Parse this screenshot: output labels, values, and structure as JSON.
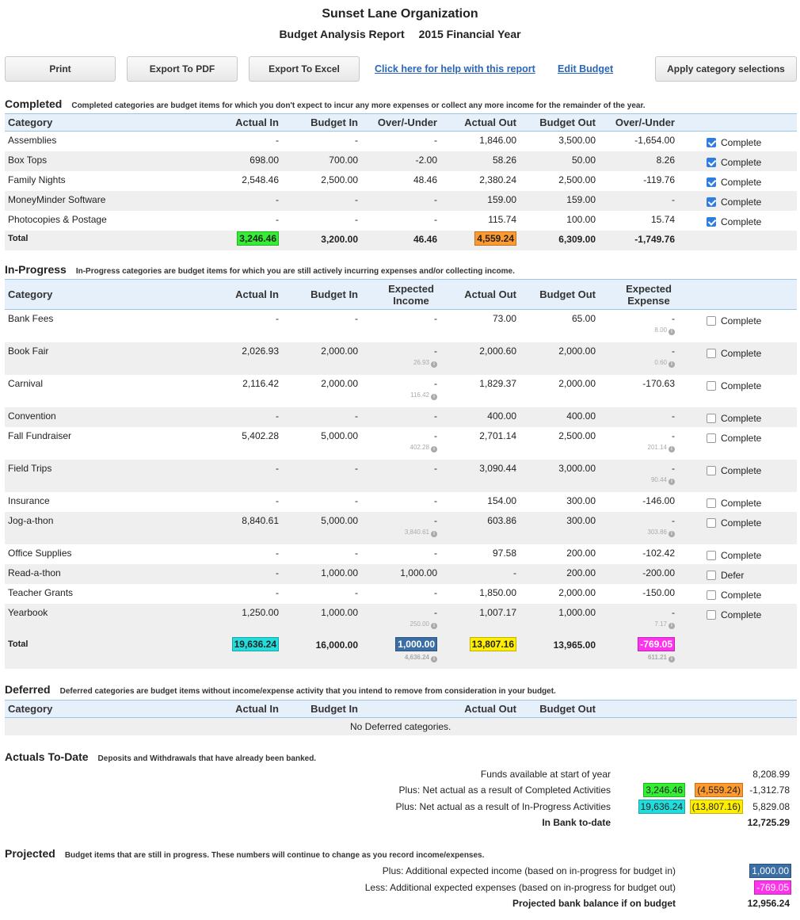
{
  "header": {
    "org": "Sunset Lane Organization",
    "report": "Budget Analysis Report",
    "year": "2015 Financial Year"
  },
  "toolbar": {
    "print": "Print",
    "export_pdf": "Export To PDF",
    "export_excel": "Export To Excel",
    "help_link": "Click here for help with this report",
    "edit_budget": "Edit Budget",
    "apply": "Apply category selections"
  },
  "colors": {
    "green": "#33ee33",
    "orange": "#ff9a2e",
    "cyan": "#22dddd",
    "yellow": "#ffee00",
    "blue": "#3a6ea5",
    "magenta": "#ff33ee"
  },
  "completed": {
    "title": "Completed",
    "desc": "Completed categories are budget items for which you don't expect to incur any more expenses or collect any more income for the remainder of the year.",
    "columns": [
      "Category",
      "Actual In",
      "Budget In",
      "Over/-Under",
      "Actual Out",
      "Budget Out",
      "Over/-Under"
    ],
    "rows": [
      {
        "cat": "Assemblies",
        "ain": "-",
        "bin": "-",
        "ou1": "-",
        "aout": "1,846.00",
        "bout": "3,500.00",
        "ou2": "-1,654.00",
        "status": "Complete",
        "checked": true
      },
      {
        "cat": "Box Tops",
        "ain": "698.00",
        "bin": "700.00",
        "ou1": "-2.00",
        "aout": "58.26",
        "bout": "50.00",
        "ou2": "8.26",
        "status": "Complete",
        "checked": true
      },
      {
        "cat": "Family Nights",
        "ain": "2,548.46",
        "bin": "2,500.00",
        "ou1": "48.46",
        "aout": "2,380.24",
        "bout": "2,500.00",
        "ou2": "-119.76",
        "status": "Complete",
        "checked": true
      },
      {
        "cat": "MoneyMinder Software",
        "ain": "-",
        "bin": "-",
        "ou1": "-",
        "aout": "159.00",
        "bout": "159.00",
        "ou2": "-",
        "status": "Complete",
        "checked": true
      },
      {
        "cat": "Photocopies & Postage",
        "ain": "-",
        "bin": "-",
        "ou1": "-",
        "aout": "115.74",
        "bout": "100.00",
        "ou2": "15.74",
        "status": "Complete",
        "checked": true
      }
    ],
    "total": {
      "label": "Total",
      "ain": "3,246.46",
      "bin": "3,200.00",
      "ou1": "46.46",
      "aout": "4,559.24",
      "bout": "6,309.00",
      "ou2": "-1,749.76"
    }
  },
  "in_progress": {
    "title": "In-Progress",
    "desc": "In-Progress categories are budget items for which you are still actively incurring expenses and/or collecting income.",
    "columns": [
      "Category",
      "Actual In",
      "Budget In",
      "Expected Income",
      "Actual Out",
      "Budget Out",
      "Expected Expense"
    ],
    "rows": [
      {
        "cat": "Bank Fees",
        "ain": "-",
        "bin": "-",
        "ei": "-",
        "ei_sub": "",
        "aout": "73.00",
        "bout": "65.00",
        "ee": "-",
        "ee_sub": "8.00",
        "status": "Complete"
      },
      {
        "cat": "Book Fair",
        "ain": "2,026.93",
        "bin": "2,000.00",
        "ei": "-",
        "ei_sub": "26.93",
        "aout": "2,000.60",
        "bout": "2,000.00",
        "ee": "-",
        "ee_sub": "0.60",
        "status": "Complete"
      },
      {
        "cat": "Carnival",
        "ain": "2,116.42",
        "bin": "2,000.00",
        "ei": "-",
        "ei_sub": "116.42",
        "aout": "1,829.37",
        "bout": "2,000.00",
        "ee": "-170.63",
        "ee_sub": "",
        "status": "Complete"
      },
      {
        "cat": "Convention",
        "ain": "-",
        "bin": "-",
        "ei": "-",
        "ei_sub": "",
        "aout": "400.00",
        "bout": "400.00",
        "ee": "-",
        "ee_sub": "",
        "status": "Complete"
      },
      {
        "cat": "Fall Fundraiser",
        "ain": "5,402.28",
        "bin": "5,000.00",
        "ei": "-",
        "ei_sub": "402.28",
        "aout": "2,701.14",
        "bout": "2,500.00",
        "ee": "-",
        "ee_sub": "201.14",
        "status": "Complete"
      },
      {
        "cat": "Field Trips",
        "ain": "-",
        "bin": "-",
        "ei": "-",
        "ei_sub": "",
        "aout": "3,090.44",
        "bout": "3,000.00",
        "ee": "-",
        "ee_sub": "90.44",
        "status": "Complete"
      },
      {
        "cat": "Insurance",
        "ain": "-",
        "bin": "-",
        "ei": "-",
        "ei_sub": "",
        "aout": "154.00",
        "bout": "300.00",
        "ee": "-146.00",
        "ee_sub": "",
        "status": "Complete"
      },
      {
        "cat": "Jog-a-thon",
        "ain": "8,840.61",
        "bin": "5,000.00",
        "ei": "-",
        "ei_sub": "3,840.61",
        "aout": "603.86",
        "bout": "300.00",
        "ee": "-",
        "ee_sub": "303.86",
        "status": "Complete"
      },
      {
        "cat": "Office Supplies",
        "ain": "-",
        "bin": "-",
        "ei": "-",
        "ei_sub": "",
        "aout": "97.58",
        "bout": "200.00",
        "ee": "-102.42",
        "ee_sub": "",
        "status": "Complete"
      },
      {
        "cat": "Read-a-thon",
        "ain": "-",
        "bin": "1,000.00",
        "ei": "1,000.00",
        "ei_sub": "",
        "aout": "-",
        "bout": "200.00",
        "ee": "-200.00",
        "ee_sub": "",
        "status": "Defer"
      },
      {
        "cat": "Teacher Grants",
        "ain": "-",
        "bin": "-",
        "ei": "-",
        "ei_sub": "",
        "aout": "1,850.00",
        "bout": "2,000.00",
        "ee": "-150.00",
        "ee_sub": "",
        "status": "Complete"
      },
      {
        "cat": "Yearbook",
        "ain": "1,250.00",
        "bin": "1,000.00",
        "ei": "-",
        "ei_sub": "250.00",
        "aout": "1,007.17",
        "bout": "1,000.00",
        "ee": "-",
        "ee_sub": "7.17",
        "status": "Complete"
      }
    ],
    "total": {
      "label": "Total",
      "ain": "19,636.24",
      "bin": "16,000.00",
      "ei": "1,000.00",
      "ei_sub": "4,636.24",
      "aout": "13,807.16",
      "bout": "13,965.00",
      "ee": "-769.05",
      "ee_sub": "611.21"
    }
  },
  "deferred": {
    "title": "Deferred",
    "desc": "Deferred categories are budget items without income/expense activity that you intend to remove from consideration in your budget.",
    "columns": [
      "Category",
      "Actual In",
      "Budget In",
      "Actual Out",
      "Budget Out"
    ],
    "empty": "No Deferred categories."
  },
  "actuals": {
    "title": "Actuals To-Date",
    "desc": "Deposits and Withdrawals that have already been banked.",
    "funds_label": "Funds available at start of year",
    "funds_value": "8,208.99",
    "completed_label": "Plus: Net actual as a result of Completed Activities",
    "completed_in": "3,246.46",
    "completed_out": "(4,559.24)",
    "completed_net": "-1,312.78",
    "inprog_label": "Plus: Net actual as a result of In-Progress Activities",
    "inprog_in": "19,636.24",
    "inprog_out": "(13,807.16)",
    "inprog_net": "5,829.08",
    "bank_label": "In Bank to-date",
    "bank_value": "12,725.29"
  },
  "projected": {
    "title": "Projected",
    "desc": "Budget items that are still in progress. These numbers will continue to change as you record income/expenses.",
    "income_label": "Plus: Additional expected income (based on in-progress for budget in)",
    "income_value": "1,000.00",
    "expense_label": "Less: Additional expected expenses (based on in-progress for budget out)",
    "expense_value": "-769.05",
    "balance_label": "Projected bank balance if on budget",
    "balance_value": "12,956.24"
  }
}
